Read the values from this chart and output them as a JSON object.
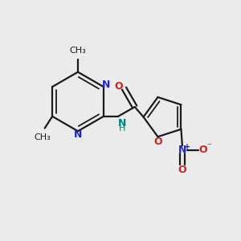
{
  "bg_color": "#ebebeb",
  "bond_color": "#1a1a1a",
  "N_color": "#2222cc",
  "O_color": "#cc2222",
  "NH_color": "#008080",
  "N_no2_color": "#2222cc",
  "figsize": [
    3.0,
    3.0
  ],
  "dpi": 100,
  "xlim": [
    0,
    10
  ],
  "ylim": [
    0,
    10
  ]
}
